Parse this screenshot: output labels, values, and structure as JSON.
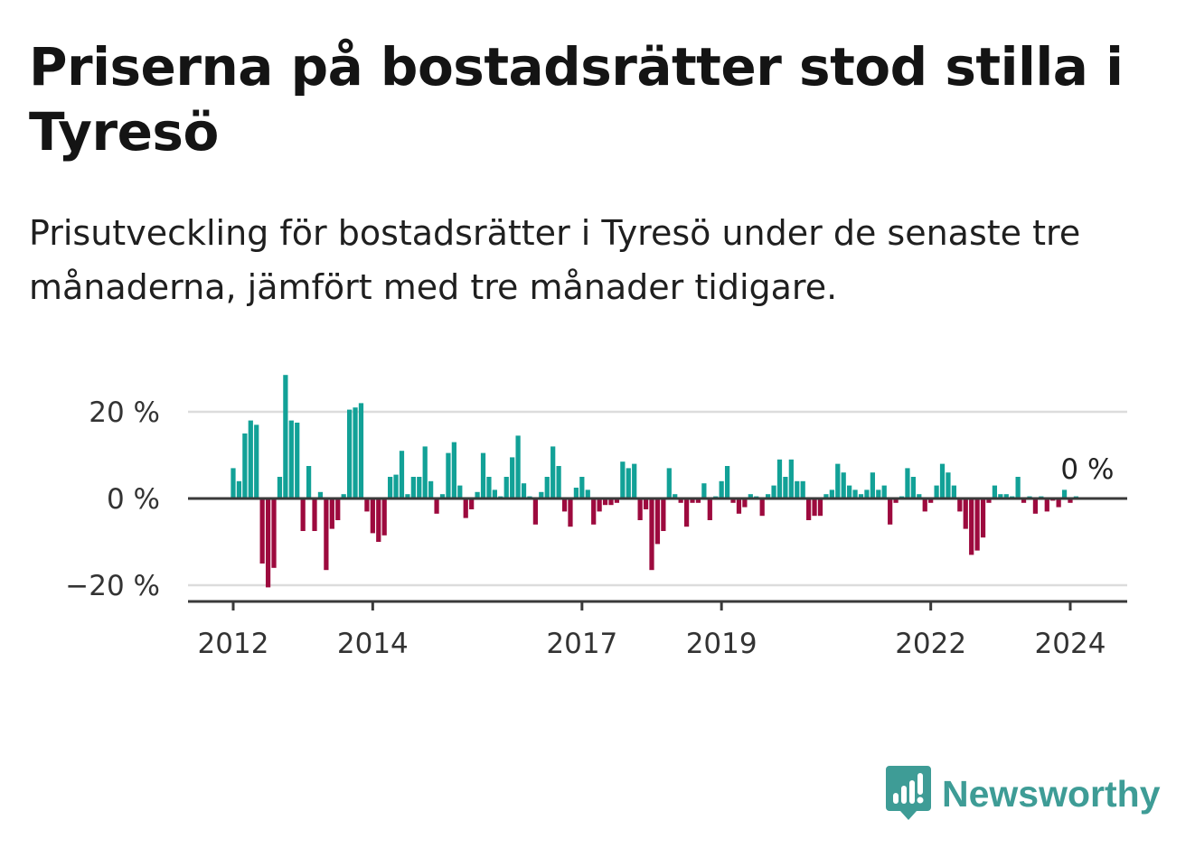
{
  "header": {
    "title": "Priserna på bostadsrätter stod stilla i Tyresö",
    "subtitle": "Prisutveckling för bostadsrätter i Tyresö under de senaste tre månaderna, jämfört med tre månader tidigare."
  },
  "brand": {
    "name": "Newsworthy",
    "color": "#3e9c96"
  },
  "chart_data": {
    "type": "bar",
    "y_unit": "%",
    "ylim": [
      -24,
      30
    ],
    "y_ticks": [
      {
        "value": 20,
        "label": "20 %"
      },
      {
        "value": 0,
        "label": "0 %"
      },
      {
        "value": -20,
        "label": "−20 %"
      }
    ],
    "x_ticks": [
      {
        "year": 2012,
        "label": "2012"
      },
      {
        "year": 2014,
        "label": "2014"
      },
      {
        "year": 2017,
        "label": "2017"
      },
      {
        "year": 2019,
        "label": "2019"
      },
      {
        "year": 2022,
        "label": "2022"
      },
      {
        "year": 2024,
        "label": "2024"
      }
    ],
    "x_start": "2012-01",
    "x_end": "2024-03",
    "grid": true,
    "positive_color": "#12a197",
    "negative_color": "#9d0a3e",
    "end_label": "0 %",
    "values": [
      7,
      4,
      15,
      18,
      17,
      -15,
      -20.5,
      -16,
      5,
      28.5,
      18,
      17.5,
      -7.5,
      7.5,
      -7.5,
      1.5,
      -16.5,
      -7,
      -5,
      1,
      20.5,
      21,
      22,
      -3,
      -8,
      -10,
      -8.5,
      5,
      5.5,
      11,
      1,
      5,
      5,
      12,
      4,
      -3.5,
      1,
      10.5,
      13,
      3,
      -4.5,
      -2.5,
      1.5,
      10.5,
      5,
      2,
      0.5,
      5,
      9.5,
      14.5,
      3.5,
      0.5,
      -6,
      1.5,
      5,
      12,
      7.5,
      -3,
      -6.5,
      2.5,
      5,
      2,
      -6,
      -3,
      -1.5,
      -1.5,
      -1,
      8.5,
      7,
      8,
      -5,
      -2.5,
      -16.5,
      -10.5,
      -7.5,
      7,
      1,
      -1,
      -6.5,
      -1,
      -1,
      3.5,
      -5,
      0.5,
      4,
      7.5,
      -1,
      -3.5,
      -2,
      1,
      0.5,
      -4,
      1,
      3,
      9,
      5,
      9,
      4,
      4,
      -5,
      -4,
      -4,
      1,
      2,
      8,
      6,
      3,
      2,
      1,
      2,
      6,
      2,
      3,
      -6,
      -1,
      0.5,
      7,
      5,
      1,
      -3,
      -1,
      3,
      8,
      6,
      3,
      -3,
      -7,
      -13,
      -12,
      -9,
      -1,
      3,
      1,
      1,
      0.5,
      5,
      -1,
      0.5,
      -3.5,
      0.5,
      -3,
      -0.5,
      -2,
      2,
      -1,
      0.5
    ]
  }
}
